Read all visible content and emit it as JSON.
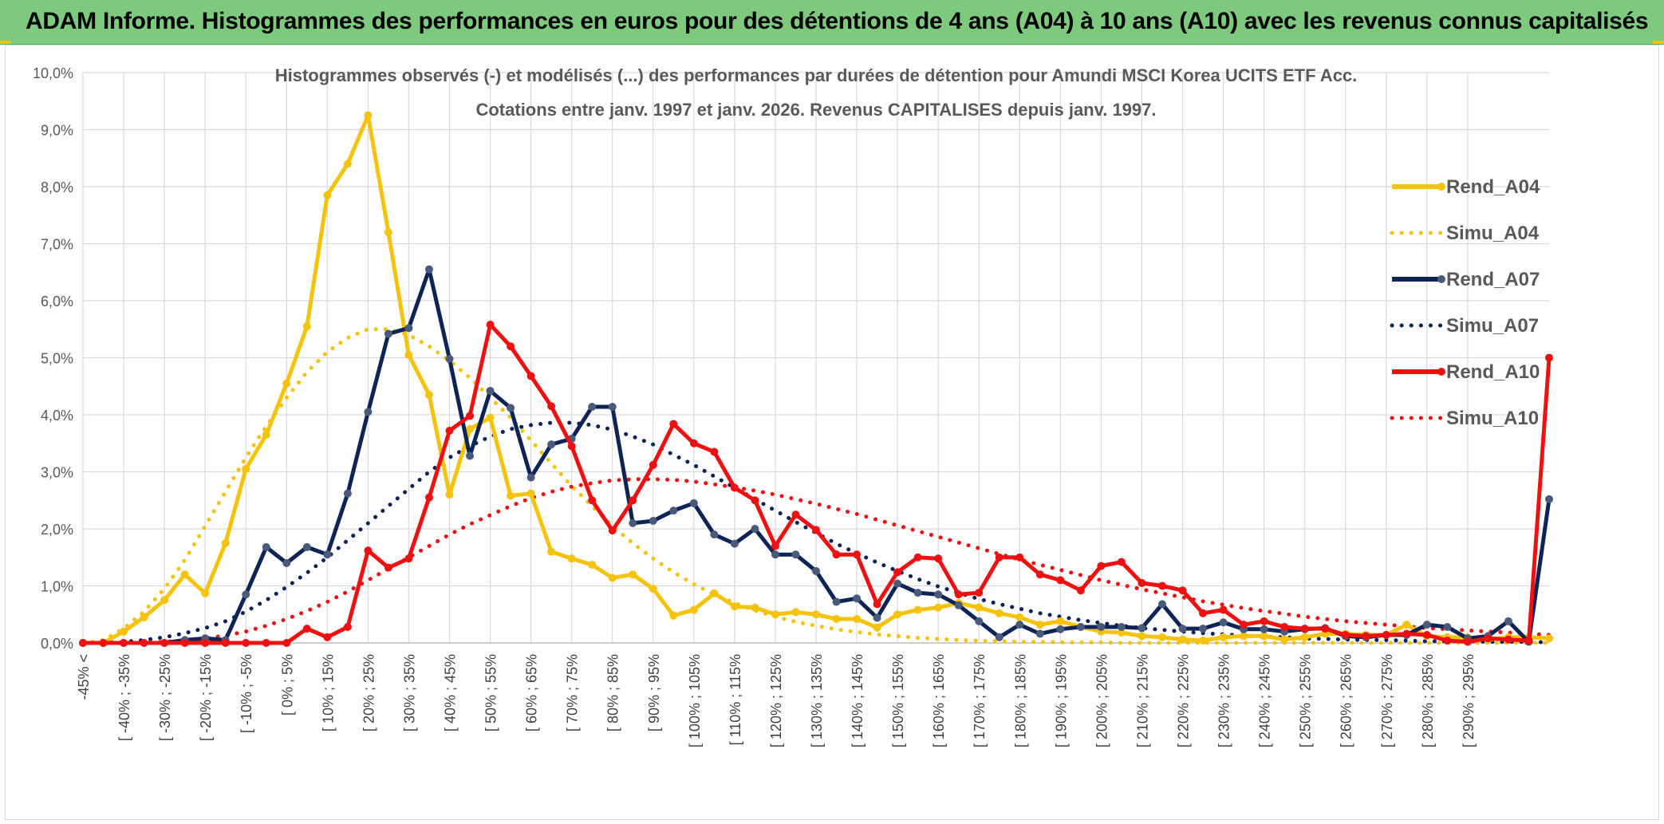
{
  "banner": {
    "title": "ADAM Informe. Histogrammes des performances en euros pour des détentions de 4 ans (A04) à 10 ans (A10) avec les revenus connus capitalisés"
  },
  "colors": {
    "banner_bg": "#7dc97d",
    "A04": "#f5c20c",
    "A07": "#0e2456",
    "A10": "#ee1111",
    "grid": "#d9d9d9",
    "marker_A07": "#4a5a7a"
  },
  "chart_data": {
    "type": "line",
    "title": "Histogrammes observés (-) et modélisés (...) des performances par durées de détention pour Amundi MSCI Korea UCITS ETF Acc.",
    "subtitle": "Cotations entre janv. 1997 et janv. 2026. Revenus CAPITALISES depuis janv. 1997.",
    "xlabel": "",
    "ylabel": "",
    "ylim": [
      0,
      10
    ],
    "y_unit": "%",
    "y_ticks": [
      "0,0%",
      "1,0%",
      "2,0%",
      "3,0%",
      "4,0%",
      "5,0%",
      "6,0%",
      "7,0%",
      "8,0%",
      "9,0%",
      "10,0%"
    ],
    "grid": true,
    "legend_position": "right",
    "x_tick_labels": [
      "-45% <",
      "[ -40% ; -35%",
      "[ -30% ; -25%",
      "[ -20% ; -15%",
      "[ -10% ; -5%",
      "[ 0% ; 5%",
      "[ 10% ; 15%",
      "[ 20% ; 25%",
      "[ 30% ; 35%",
      "[ 40% ; 45%",
      "[ 50% ; 55%",
      "[ 60% ; 65%",
      "[ 70% ; 75%",
      "[ 80% ; 85%",
      "[ 90% ; 95%",
      "[ 100% ; 105%",
      "[ 110% ; 115%",
      "[ 120% ; 125%",
      "[ 130% ; 135%",
      "[ 140% ; 145%",
      "[ 150% ; 155%",
      "[ 160% ; 165%",
      "[ 170% ; 175%",
      "[ 180% ; 185%",
      "[ 190% ; 195%",
      "[ 200% ; 205%",
      "[ 210% ; 215%",
      "[ 220% ; 225%",
      "[ 230% ; 235%",
      "[ 240% ; 245%",
      "[ 250% ; 255%",
      "[ 260% ; 265%",
      "[ 270% ; 275%",
      "[ 280% ; 285%",
      "[ 290% ; 295%"
    ],
    "series": [
      {
        "name": "Rend_A04",
        "style": "solid",
        "color": "#f5c20c",
        "marker": "circle",
        "values": [
          0,
          0,
          0.2,
          0.45,
          0.75,
          1.2,
          0.87,
          1.75,
          3.05,
          3.65,
          4.55,
          5.55,
          7.85,
          8.4,
          9.25,
          7.2,
          5.05,
          4.35,
          2.6,
          3.75,
          3.95,
          2.58,
          2.62,
          1.6,
          1.48,
          1.37,
          1.14,
          1.2,
          0.95,
          0.48,
          0.58,
          0.87,
          0.64,
          0.62,
          0.5,
          0.54,
          0.5,
          0.42,
          0.42,
          0.27,
          0.5,
          0.58,
          0.62,
          0.7,
          0.62,
          0.52,
          0.45,
          0.32,
          0.38,
          0.28,
          0.2,
          0.18,
          0.12,
          0.1,
          0.06,
          0.04,
          0.1,
          0.12,
          0.12,
          0.06,
          0.1,
          0.16,
          0.16,
          0.14,
          0.14,
          0.32,
          0.12,
          0.1,
          0.1,
          0.06,
          0.1,
          0.1,
          0.08
        ]
      },
      {
        "name": "Simu_A04",
        "style": "dotted",
        "color": "#f5c20c",
        "values": [
          0.0,
          0.05,
          0.25,
          0.55,
          0.95,
          1.45,
          2.05,
          2.65,
          3.25,
          3.8,
          4.3,
          4.75,
          5.1,
          5.35,
          5.5,
          5.5,
          5.4,
          5.2,
          4.95,
          4.65,
          4.3,
          3.95,
          3.55,
          3.15,
          2.75,
          2.4,
          2.05,
          1.75,
          1.48,
          1.24,
          1.03,
          0.85,
          0.7,
          0.57,
          0.46,
          0.37,
          0.3,
          0.24,
          0.19,
          0.15,
          0.12,
          0.09,
          0.07,
          0.05,
          0.04,
          0.03,
          0.02,
          0.02,
          0.01,
          0.01,
          0.01,
          0.0,
          0.0,
          0.0,
          0.0,
          0.0,
          0.0,
          0.0,
          0.0,
          0.0,
          0.0,
          0.0,
          0.0,
          0.0,
          0.0,
          0.0,
          0.0,
          0.0,
          0.0,
          0.0,
          0.0,
          0.0,
          0.0
        ]
      },
      {
        "name": "Rend_A07",
        "style": "solid",
        "color": "#0e2456",
        "marker": "circle",
        "values": [
          0,
          0,
          0,
          0,
          0,
          0.05,
          0.08,
          0.05,
          0.85,
          1.68,
          1.4,
          1.68,
          1.55,
          2.62,
          4.05,
          5.42,
          5.52,
          6.55,
          4.98,
          3.28,
          4.42,
          4.12,
          2.9,
          3.48,
          3.58,
          4.14,
          4.14,
          2.1,
          2.14,
          2.32,
          2.45,
          1.9,
          1.74,
          2.0,
          1.55,
          1.55,
          1.26,
          0.72,
          0.78,
          0.44,
          1.04,
          0.88,
          0.85,
          0.66,
          0.38,
          0.1,
          0.32,
          0.16,
          0.24,
          0.28,
          0.28,
          0.28,
          0.26,
          0.68,
          0.25,
          0.25,
          0.36,
          0.24,
          0.24,
          0.2,
          0.24,
          0.26,
          0.12,
          0.1,
          0.14,
          0.14,
          0.32,
          0.28,
          0.08,
          0.12,
          0.38,
          0.02,
          2.52
        ]
      },
      {
        "name": "Simu_A07",
        "style": "dotted",
        "color": "#0e2456",
        "values": [
          0.0,
          0.0,
          0.02,
          0.05,
          0.1,
          0.17,
          0.26,
          0.38,
          0.55,
          0.75,
          0.98,
          1.23,
          1.5,
          1.8,
          2.1,
          2.4,
          2.7,
          3.0,
          3.25,
          3.45,
          3.62,
          3.75,
          3.82,
          3.86,
          3.86,
          3.82,
          3.74,
          3.62,
          3.48,
          3.3,
          3.12,
          2.92,
          2.72,
          2.52,
          2.32,
          2.12,
          1.93,
          1.74,
          1.57,
          1.41,
          1.26,
          1.12,
          0.99,
          0.88,
          0.77,
          0.68,
          0.6,
          0.52,
          0.46,
          0.4,
          0.35,
          0.3,
          0.26,
          0.23,
          0.2,
          0.17,
          0.15,
          0.13,
          0.11,
          0.1,
          0.08,
          0.07,
          0.06,
          0.05,
          0.05,
          0.04,
          0.03,
          0.03,
          0.03,
          0.02,
          0.02,
          0.02,
          0.01
        ]
      },
      {
        "name": "Rend_A10",
        "style": "solid",
        "color": "#ee1111",
        "marker": "circle",
        "values": [
          0,
          0,
          0,
          0,
          0,
          0,
          0,
          0,
          0,
          0,
          0,
          0.25,
          0.1,
          0.28,
          1.62,
          1.32,
          1.48,
          2.55,
          3.72,
          3.98,
          5.58,
          5.2,
          4.68,
          4.15,
          3.45,
          2.5,
          1.97,
          2.5,
          3.12,
          3.84,
          3.5,
          3.35,
          2.72,
          2.5,
          1.7,
          2.25,
          1.98,
          1.55,
          1.55,
          0.68,
          1.24,
          1.5,
          1.48,
          0.85,
          0.88,
          1.5,
          1.5,
          1.2,
          1.1,
          0.92,
          1.35,
          1.42,
          1.05,
          1.0,
          0.92,
          0.52,
          0.58,
          0.32,
          0.38,
          0.28,
          0.25,
          0.25,
          0.14,
          0.12,
          0.14,
          0.16,
          0.14,
          0.04,
          0.02,
          0.08,
          0.06,
          0.04,
          5.0
        ]
      },
      {
        "name": "Simu_A10",
        "style": "dotted",
        "color": "#ee1111",
        "values": [
          0.0,
          0.0,
          0.0,
          0.0,
          0.02,
          0.04,
          0.08,
          0.13,
          0.2,
          0.3,
          0.42,
          0.56,
          0.72,
          0.9,
          1.1,
          1.3,
          1.5,
          1.7,
          1.9,
          2.08,
          2.24,
          2.4,
          2.54,
          2.65,
          2.74,
          2.8,
          2.85,
          2.87,
          2.87,
          2.86,
          2.83,
          2.78,
          2.73,
          2.67,
          2.6,
          2.52,
          2.44,
          2.35,
          2.26,
          2.16,
          2.06,
          1.96,
          1.86,
          1.76,
          1.66,
          1.56,
          1.46,
          1.37,
          1.28,
          1.19,
          1.1,
          1.02,
          0.94,
          0.87,
          0.8,
          0.73,
          0.67,
          0.61,
          0.56,
          0.51,
          0.46,
          0.42,
          0.38,
          0.35,
          0.32,
          0.29,
          0.26,
          0.24,
          0.22,
          0.2,
          0.18,
          0.16,
          0.14
        ]
      }
    ]
  }
}
